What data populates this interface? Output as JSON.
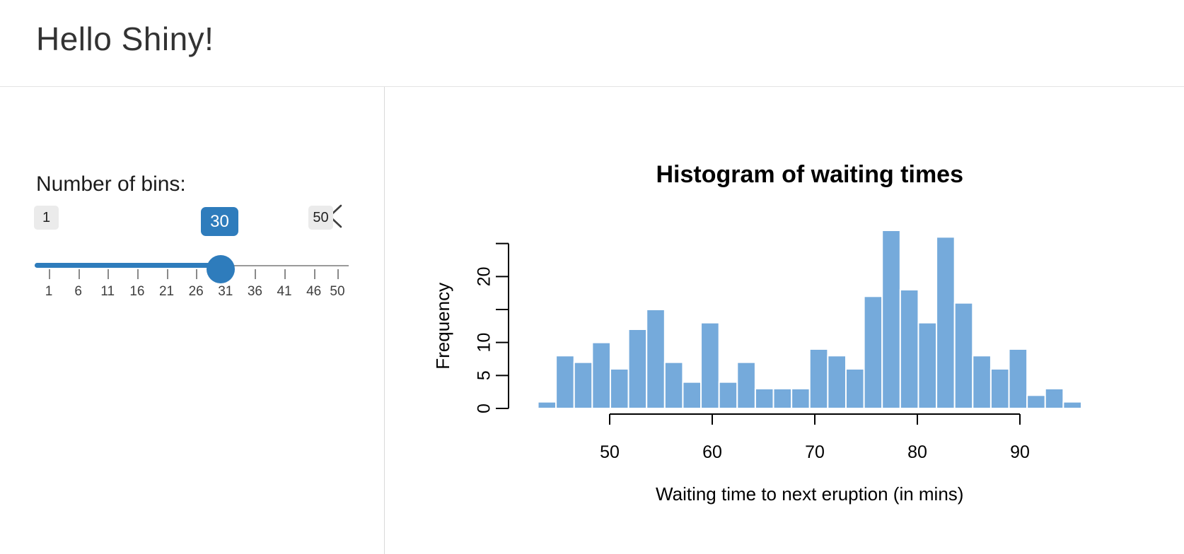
{
  "header": {
    "title": "Hello Shiny!"
  },
  "sidebar": {
    "collapse_tooltip": "Toggle sidebar",
    "slider": {
      "label": "Number of bins:",
      "min": 1,
      "max": 50,
      "value": 30,
      "tick_labels": [
        1,
        6,
        11,
        16,
        21,
        26,
        31,
        36,
        41,
        46,
        50
      ],
      "accent_color": "#2e7cbc"
    }
  },
  "chart_data": {
    "type": "bar",
    "title": "Histogram of waiting times",
    "xlabel": "Waiting time to next eruption (in mins)",
    "ylabel": "Frequency",
    "bin_start": 43,
    "bin_end": 96,
    "counts": [
      1,
      8,
      7,
      10,
      6,
      12,
      15,
      7,
      4,
      13,
      4,
      7,
      3,
      3,
      3,
      9,
      8,
      6,
      17,
      27,
      18,
      13,
      26,
      16,
      8,
      6,
      9,
      2,
      3,
      1
    ],
    "x_ticks": [
      50,
      60,
      70,
      80,
      90
    ],
    "y_ticks": [
      0,
      5,
      10,
      15,
      20,
      25
    ],
    "y_labeled_ticks": [
      0,
      5,
      10,
      20
    ],
    "xlim": [
      40.88,
      98.12
    ],
    "ylim": [
      0,
      27
    ],
    "bar_color": "#75aadb",
    "bar_border": "#ffffff",
    "grid": false,
    "legend": "none"
  }
}
